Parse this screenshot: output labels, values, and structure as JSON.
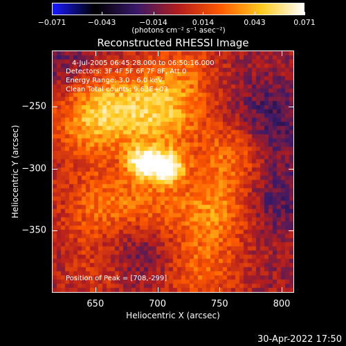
{
  "chart_data": {
    "type": "heatmap",
    "title": "Reconstructed RHESSI Image",
    "xlabel": "Heliocentric X (arcsec)",
    "ylabel": "Heliocentric Y (arcsec)",
    "xlim": [
      615,
      810
    ],
    "ylim": [
      -400,
      -205
    ],
    "x_ticks": [
      "650",
      "700",
      "750",
      "800"
    ],
    "x_tick_values": [
      650,
      700,
      750,
      800
    ],
    "y_ticks": [
      "−250",
      "−300",
      "−350"
    ],
    "y_tick_values": [
      -250,
      -300,
      -350
    ],
    "colorbar": {
      "ticks": [
        "−0.071",
        "−0.043",
        "−0.014",
        "0.014",
        "0.043",
        "0.071"
      ],
      "tick_values": [
        -0.071,
        -0.043,
        -0.014,
        0.014,
        0.043,
        0.071
      ],
      "range": [
        -0.071,
        0.071
      ],
      "unit": "(photons cm⁻² s⁻¹ asec⁻²)",
      "colors": [
        "#1a1aff",
        "#000000",
        "#3a1a6a",
        "#b41e1e",
        "#ff5a00",
        "#ffcc20",
        "#ffffff"
      ]
    },
    "sources": [
      {
        "x": 708,
        "y": -299,
        "peak": 0.071
      },
      {
        "x": 688,
        "y": -295,
        "peak": 0.062
      },
      {
        "x": 702,
        "y": -258,
        "peak": 0.04
      },
      {
        "x": 665,
        "y": -250,
        "peak": 0.035
      },
      {
        "x": 640,
        "y": -262,
        "peak": 0.03
      },
      {
        "x": 690,
        "y": -330,
        "peak": 0.028
      },
      {
        "x": 745,
        "y": -335,
        "peak": 0.034
      },
      {
        "x": 760,
        "y": -290,
        "peak": 0.03
      },
      {
        "x": 735,
        "y": -385,
        "peak": 0.026
      },
      {
        "x": 650,
        "y": -330,
        "peak": 0.025
      },
      {
        "x": 655,
        "y": -380,
        "peak": 0.018
      },
      {
        "x": 720,
        "y": -225,
        "peak": 0.024
      }
    ],
    "negative_regions": [
      {
        "x": 790,
        "y": -260,
        "peak": -0.02
      },
      {
        "x": 795,
        "y": -320,
        "peak": -0.018
      },
      {
        "x": 680,
        "y": -365,
        "peak": -0.022
      },
      {
        "x": 625,
        "y": -215,
        "peak": -0.012
      }
    ]
  },
  "annotations": {
    "time_range": "4-Jul-2005 06:45:28.000 to 06:50:16.000",
    "detectors": "Detectors: 3F 4F 5F 6F 7F 8F, Att 0",
    "energy": "Energy Range: 3.0 - 6.0 keV",
    "method": "Clean    Total counts: 9.63E+03",
    "peak": "Position of Peak = [708,-299]"
  },
  "footer": {
    "date": "30-Apr-2022 17:50"
  }
}
